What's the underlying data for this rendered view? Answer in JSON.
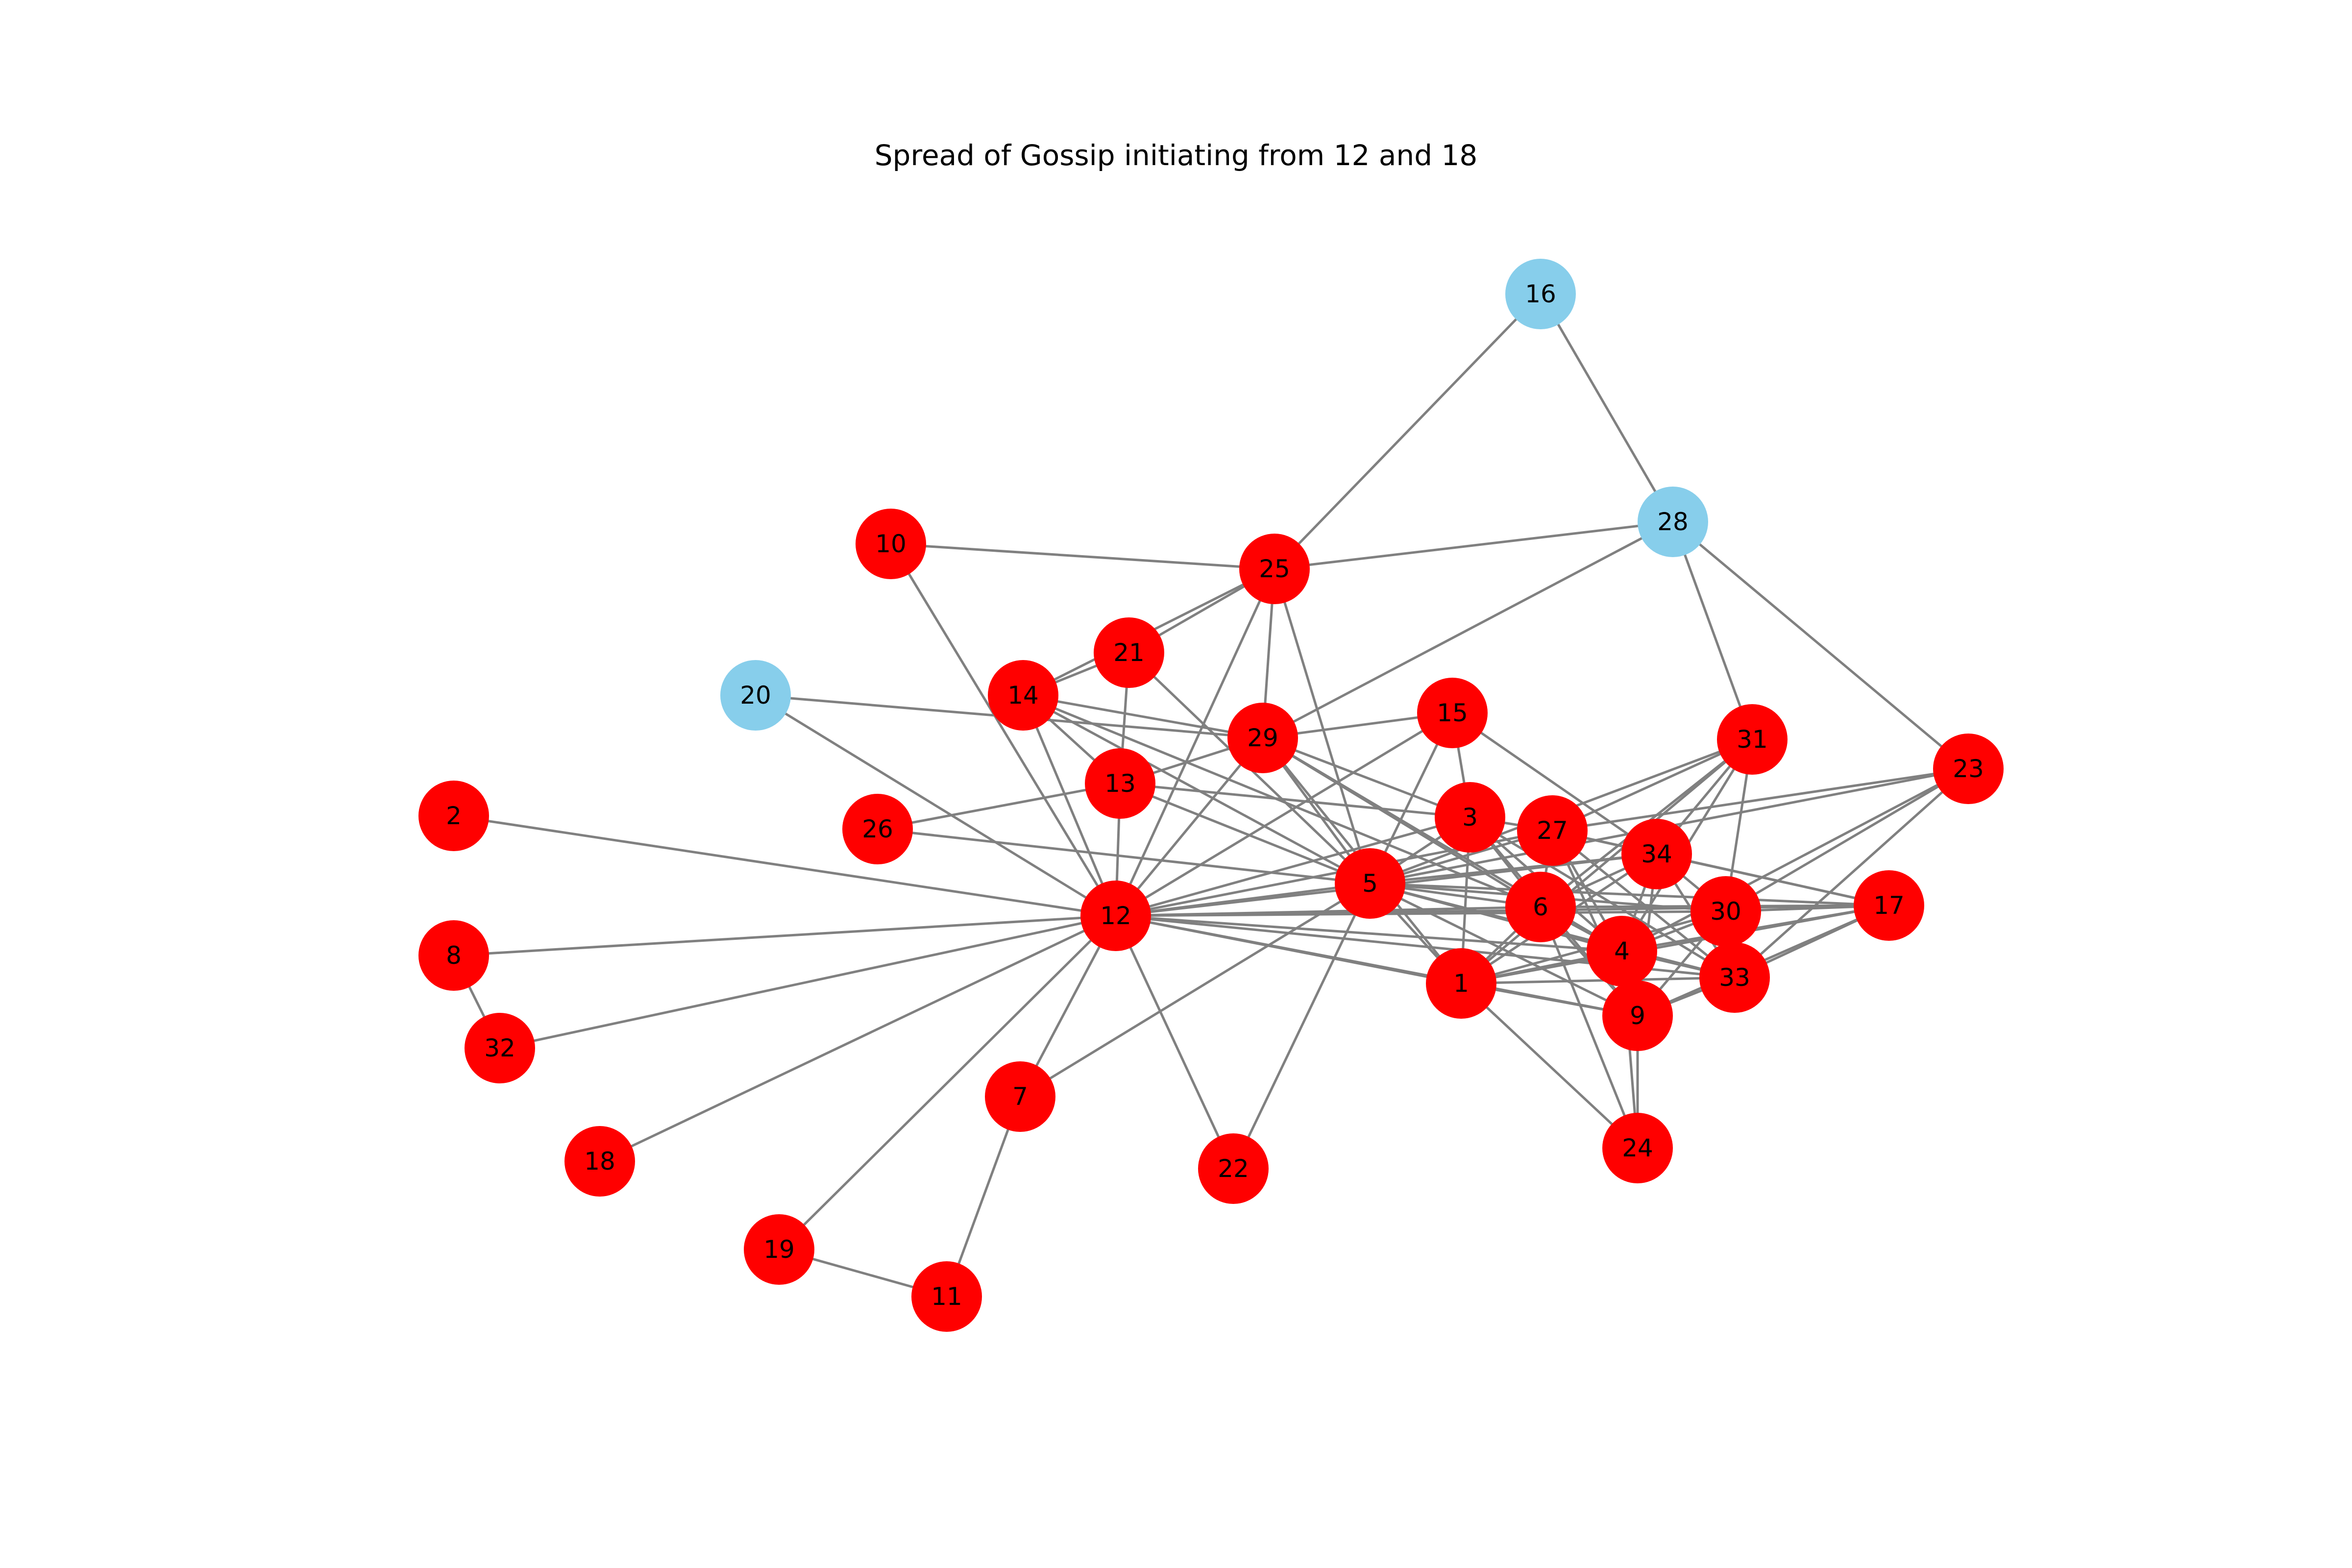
{
  "title": "Spread of Gossip initiating from 12 and 18",
  "colors": {
    "informed": "#ff0000",
    "uninformed": "#87ceeb",
    "edge": "#808080"
  },
  "nodes": [
    {
      "id": "1",
      "state": "informed"
    },
    {
      "id": "2",
      "state": "informed"
    },
    {
      "id": "3",
      "state": "informed"
    },
    {
      "id": "4",
      "state": "informed"
    },
    {
      "id": "5",
      "state": "informed"
    },
    {
      "id": "6",
      "state": "informed"
    },
    {
      "id": "7",
      "state": "informed"
    },
    {
      "id": "8",
      "state": "informed"
    },
    {
      "id": "9",
      "state": "informed"
    },
    {
      "id": "10",
      "state": "informed"
    },
    {
      "id": "11",
      "state": "informed"
    },
    {
      "id": "12",
      "state": "informed"
    },
    {
      "id": "13",
      "state": "informed"
    },
    {
      "id": "14",
      "state": "informed"
    },
    {
      "id": "15",
      "state": "informed"
    },
    {
      "id": "16",
      "state": "uninformed"
    },
    {
      "id": "17",
      "state": "informed"
    },
    {
      "id": "18",
      "state": "informed"
    },
    {
      "id": "19",
      "state": "informed"
    },
    {
      "id": "20",
      "state": "uninformed"
    },
    {
      "id": "21",
      "state": "informed"
    },
    {
      "id": "22",
      "state": "informed"
    },
    {
      "id": "23",
      "state": "informed"
    },
    {
      "id": "24",
      "state": "informed"
    },
    {
      "id": "25",
      "state": "informed"
    },
    {
      "id": "26",
      "state": "informed"
    },
    {
      "id": "27",
      "state": "informed"
    },
    {
      "id": "28",
      "state": "uninformed"
    },
    {
      "id": "29",
      "state": "informed"
    },
    {
      "id": "30",
      "state": "informed"
    },
    {
      "id": "31",
      "state": "informed"
    },
    {
      "id": "32",
      "state": "informed"
    },
    {
      "id": "33",
      "state": "informed"
    },
    {
      "id": "34",
      "state": "informed"
    }
  ],
  "edges": [
    [
      "16",
      "25"
    ],
    [
      "16",
      "28"
    ],
    [
      "28",
      "25"
    ],
    [
      "28",
      "29"
    ],
    [
      "28",
      "31"
    ],
    [
      "28",
      "23"
    ],
    [
      "10",
      "25"
    ],
    [
      "10",
      "12"
    ],
    [
      "25",
      "21"
    ],
    [
      "25",
      "14"
    ],
    [
      "25",
      "29"
    ],
    [
      "25",
      "12"
    ],
    [
      "25",
      "5"
    ],
    [
      "21",
      "14"
    ],
    [
      "21",
      "13"
    ],
    [
      "21",
      "5"
    ],
    [
      "14",
      "29"
    ],
    [
      "14",
      "13"
    ],
    [
      "14",
      "12"
    ],
    [
      "14",
      "5"
    ],
    [
      "14",
      "6"
    ],
    [
      "20",
      "29"
    ],
    [
      "20",
      "12"
    ],
    [
      "29",
      "15"
    ],
    [
      "29",
      "13"
    ],
    [
      "29",
      "12"
    ],
    [
      "29",
      "5"
    ],
    [
      "29",
      "3"
    ],
    [
      "29",
      "6"
    ],
    [
      "29",
      "1"
    ],
    [
      "29",
      "4"
    ],
    [
      "15",
      "5"
    ],
    [
      "15",
      "34"
    ],
    [
      "15",
      "12"
    ],
    [
      "15",
      "3"
    ],
    [
      "13",
      "12"
    ],
    [
      "13",
      "5"
    ],
    [
      "13",
      "3"
    ],
    [
      "26",
      "13"
    ],
    [
      "26",
      "5"
    ],
    [
      "2",
      "12"
    ],
    [
      "8",
      "12"
    ],
    [
      "8",
      "32"
    ],
    [
      "32",
      "12"
    ],
    [
      "18",
      "12"
    ],
    [
      "19",
      "12"
    ],
    [
      "19",
      "11"
    ],
    [
      "7",
      "12"
    ],
    [
      "7",
      "11"
    ],
    [
      "7",
      "5"
    ],
    [
      "22",
      "12"
    ],
    [
      "22",
      "5"
    ],
    [
      "12",
      "5"
    ],
    [
      "12",
      "3"
    ],
    [
      "12",
      "27"
    ],
    [
      "12",
      "34"
    ],
    [
      "12",
      "6"
    ],
    [
      "12",
      "30"
    ],
    [
      "12",
      "17"
    ],
    [
      "12",
      "4"
    ],
    [
      "12",
      "1"
    ],
    [
      "12",
      "9"
    ],
    [
      "12",
      "33"
    ],
    [
      "5",
      "3"
    ],
    [
      "5",
      "27"
    ],
    [
      "5",
      "34"
    ],
    [
      "5",
      "6"
    ],
    [
      "5",
      "30"
    ],
    [
      "5",
      "17"
    ],
    [
      "5",
      "4"
    ],
    [
      "5",
      "1"
    ],
    [
      "5",
      "9"
    ],
    [
      "5",
      "33"
    ],
    [
      "5",
      "31"
    ],
    [
      "5",
      "23"
    ],
    [
      "3",
      "1"
    ],
    [
      "3",
      "27"
    ],
    [
      "3",
      "6"
    ],
    [
      "3",
      "4"
    ],
    [
      "3",
      "9"
    ],
    [
      "3",
      "33"
    ],
    [
      "27",
      "6"
    ],
    [
      "27",
      "4"
    ],
    [
      "27",
      "9"
    ],
    [
      "27",
      "33"
    ],
    [
      "27",
      "34"
    ],
    [
      "27",
      "31"
    ],
    [
      "27",
      "23"
    ],
    [
      "27",
      "17"
    ],
    [
      "31",
      "34"
    ],
    [
      "31",
      "30"
    ],
    [
      "31",
      "4"
    ],
    [
      "31",
      "6"
    ],
    [
      "31",
      "1"
    ],
    [
      "23",
      "30"
    ],
    [
      "23",
      "33"
    ],
    [
      "23",
      "4"
    ],
    [
      "34",
      "6"
    ],
    [
      "34",
      "30"
    ],
    [
      "34",
      "4"
    ],
    [
      "34",
      "1"
    ],
    [
      "34",
      "9"
    ],
    [
      "34",
      "33"
    ],
    [
      "34",
      "17"
    ],
    [
      "6",
      "1"
    ],
    [
      "6",
      "4"
    ],
    [
      "6",
      "24"
    ],
    [
      "6",
      "17"
    ],
    [
      "6",
      "9"
    ],
    [
      "30",
      "4"
    ],
    [
      "30",
      "9"
    ],
    [
      "30",
      "33"
    ],
    [
      "30",
      "17"
    ],
    [
      "30",
      "1"
    ],
    [
      "4",
      "1"
    ],
    [
      "4",
      "9"
    ],
    [
      "4",
      "33"
    ],
    [
      "4",
      "17"
    ],
    [
      "4",
      "24"
    ],
    [
      "1",
      "9"
    ],
    [
      "1",
      "24"
    ],
    [
      "1",
      "33"
    ],
    [
      "1",
      "17"
    ],
    [
      "9",
      "24"
    ],
    [
      "9",
      "33"
    ],
    [
      "9",
      "17"
    ],
    [
      "33",
      "17"
    ]
  ]
}
